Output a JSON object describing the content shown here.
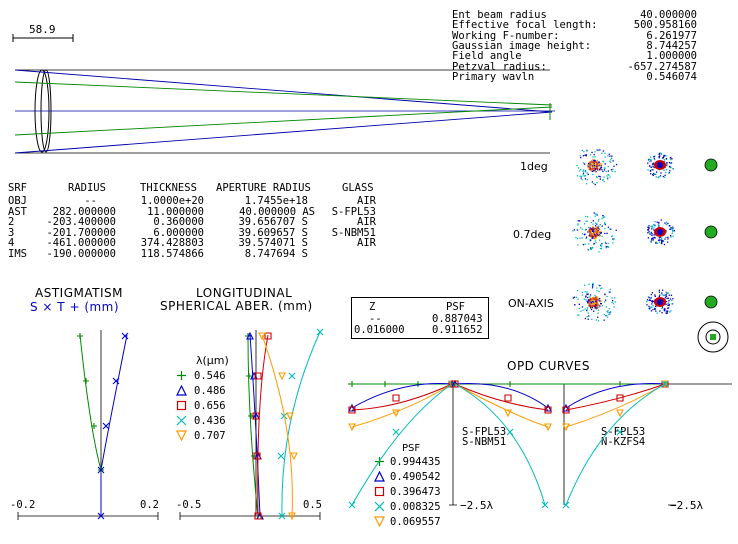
{
  "scale_label": "58.9",
  "info": [
    {
      "label": "Ent beam radius",
      "value": "40.000000"
    },
    {
      "label": "Effective focal length:",
      "value": "500.958160"
    },
    {
      "label": "Working F-number:",
      "value": "6.261977"
    },
    {
      "label": "Gaussian image height:",
      "value": "8.744257"
    },
    {
      "label": "Field angle",
      "value": "1.000000"
    },
    {
      "label": "Petzval radius:",
      "value": "-657.274587"
    },
    {
      "label": "Primary wavln",
      "value": "0.546074"
    }
  ],
  "surface_table": {
    "headers": [
      "SRF",
      "RADIUS",
      "THICKNESS",
      "APERTURE RADIUS",
      "GLASS"
    ],
    "rows": [
      [
        "OBJ",
        "--",
        "1.0000e+20",
        "1.7455e+18",
        "AIR"
      ],
      [
        "AST",
        "282.000000",
        "11.000000",
        "40.000000 AS",
        "S-FPL53"
      ],
      [
        "2",
        "-203.400000",
        "0.360000",
        "39.656707 S",
        "AIR"
      ],
      [
        "3",
        "-201.700000",
        "6.000000",
        "39.609657 S",
        "S-NBM51"
      ],
      [
        "4",
        "-461.000000",
        "374.428803",
        "39.574071 S",
        "AIR"
      ],
      [
        "IMS",
        "-190.000000",
        "118.574866",
        "8.747694 S",
        ""
      ]
    ]
  },
  "spot_labels": [
    "1deg",
    "0.7deg",
    "ON-AXIS"
  ],
  "psf_box": {
    "headers": [
      "Z",
      "PSF"
    ],
    "rows": [
      [
        "--",
        "0.887043"
      ],
      [
        "0.016000",
        "0.911652"
      ]
    ]
  },
  "astigmatism": {
    "title": "ASTIGMATISM",
    "legend": "S × T + (mm)",
    "xmin": "-0.2",
    "xmax": "0.2"
  },
  "spherical": {
    "title1": "LONGITUDINAL",
    "title2": "SPHERICAL ABER. (mm)",
    "xmin": "-0.5",
    "xmax": "0.5",
    "lambda_title": "λ(μm)",
    "wavelengths": [
      {
        "value": "0.546",
        "marker": "plus",
        "color": "#008800"
      },
      {
        "value": "0.486",
        "marker": "triangle",
        "color": "#0000cc"
      },
      {
        "value": "0.656",
        "marker": "square",
        "color": "#cc0000"
      },
      {
        "value": "0.436",
        "marker": "cross",
        "color": "#00bbbb"
      },
      {
        "value": "0.707",
        "marker": "tri-down",
        "color": "#ff9900"
      }
    ]
  },
  "opd": {
    "title": "OPD CURVES",
    "scale_left": "−2.5λ",
    "scale_right": "−2.5λ",
    "glass_left": [
      "S-FPL53",
      "S-NBM51"
    ],
    "glass_right": [
      "S-FPL53",
      "N-KZFS4"
    ],
    "psf_title": "PSF",
    "psf_values": [
      "0.994435",
      "0.490542",
      "0.396473",
      "0.008325",
      "0.069557"
    ]
  }
}
